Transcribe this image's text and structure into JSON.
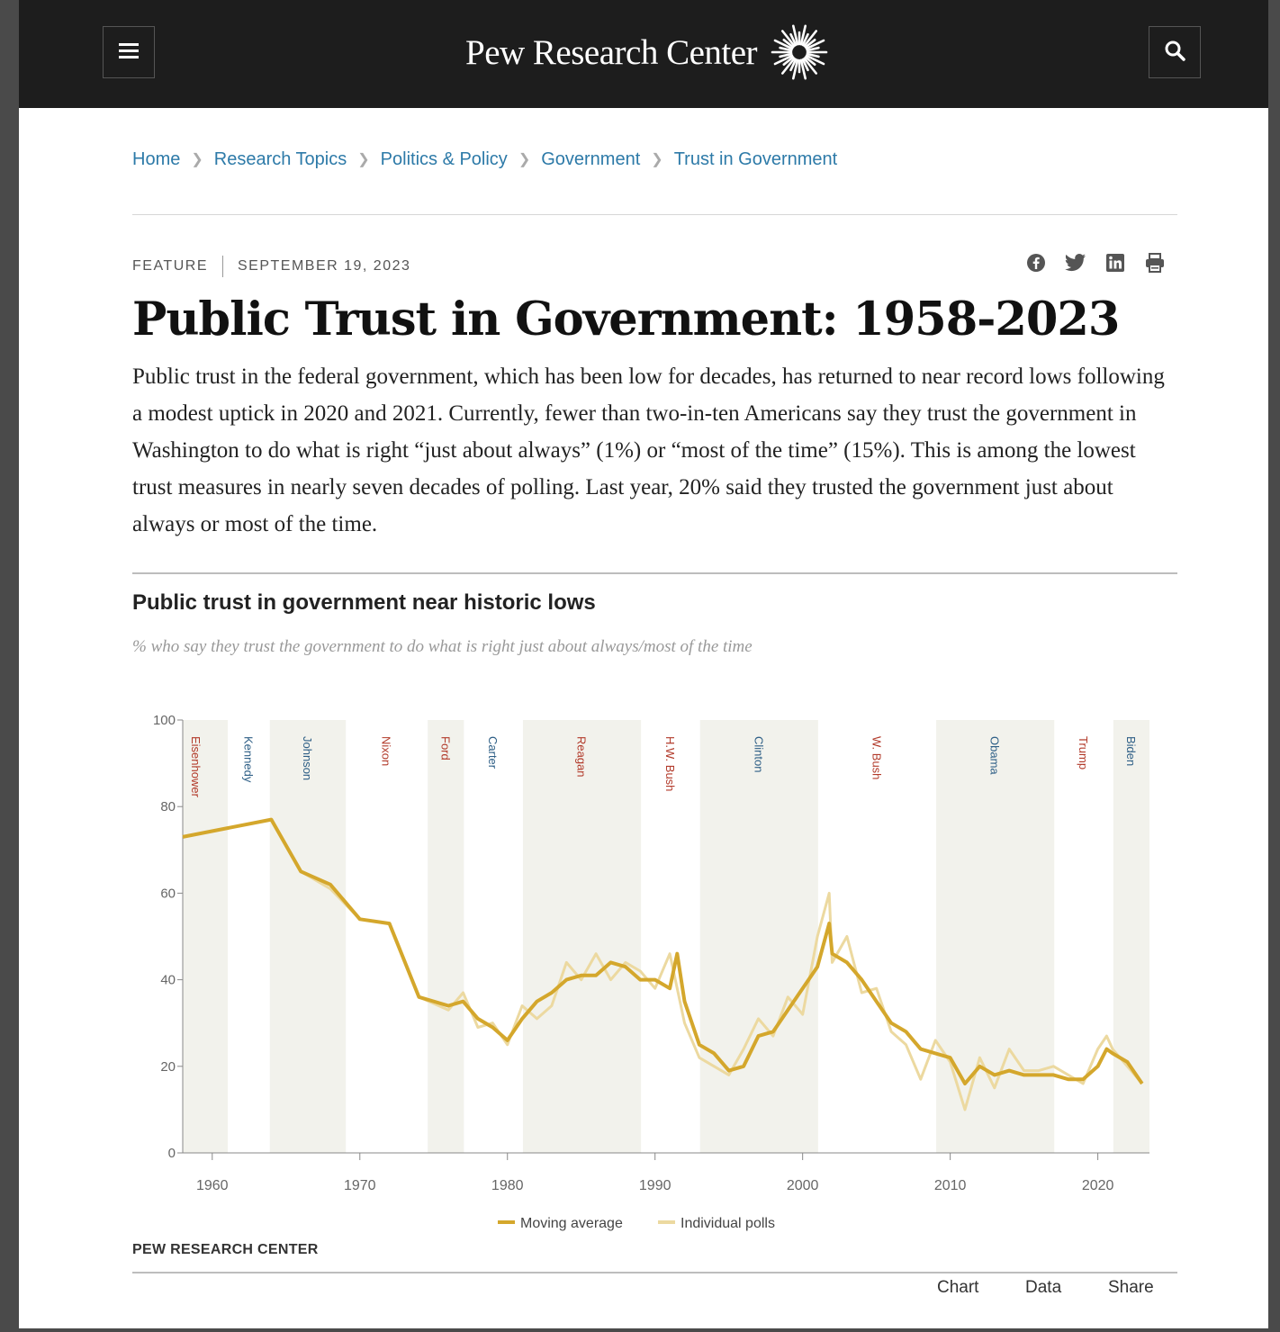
{
  "site": {
    "brand": "Pew Research Center"
  },
  "breadcrumb": [
    "Home",
    "Research Topics",
    "Politics & Policy",
    "Government",
    "Trust in Government"
  ],
  "article": {
    "type": "FEATURE",
    "date": "SEPTEMBER 19, 2023",
    "title": "Public Trust in Government: 1958-2023",
    "intro": "Public trust in the federal government, which has been low for decades, has returned to near record lows following a modest uptick in 2020 and 2021. Currently, fewer than two-in-ten Americans say they trust the government in Washington to do what is right “just about always” (1%) or “most of the time” (15%). This is among the lowest trust measures in nearly seven decades of polling. Last year, 20% said they trusted the government just about always or most of the time."
  },
  "share_icons": [
    "facebook-icon",
    "twitter-icon",
    "linkedin-icon",
    "print-icon"
  ],
  "chart_title": "Public trust in government near historic lows",
  "chart_subtitle": "% who say they trust the government to do what is right just about always/most of the time",
  "chart_source": "PEW RESEARCH CENTER",
  "chart_tabs": [
    "Chart",
    "Data",
    "Share"
  ],
  "colors": {
    "topbar": "#1d1d1d",
    "link": "#2d7aa8",
    "line": "#d4a72c",
    "polls": "#ecd9a0",
    "republican": "#b23a2a",
    "democrat": "#2e5f86",
    "shade": "#f2f2ec"
  },
  "chart_data": {
    "type": "line",
    "title": "Public trust in government near historic lows",
    "subtitle": "% who say they trust the government to do what is right just about always/most of the time",
    "xlim": [
      1958,
      2023.5
    ],
    "ylim": [
      0,
      100
    ],
    "x_ticks": [
      1960,
      1970,
      1980,
      1990,
      2000,
      2010,
      2020
    ],
    "y_ticks": [
      0,
      20,
      40,
      60,
      80,
      100
    ],
    "legend": {
      "placement": "bottom",
      "entries": [
        "Moving average",
        "Individual polls"
      ]
    },
    "presidents": [
      {
        "name": "Eisenhower",
        "start": 1958,
        "end": 1961.05,
        "party": "R"
      },
      {
        "name": "Kennedy",
        "start": 1961.05,
        "end": 1963.9,
        "party": "D"
      },
      {
        "name": "Johnson",
        "start": 1963.9,
        "end": 1969.05,
        "party": "D"
      },
      {
        "name": "Nixon",
        "start": 1969.05,
        "end": 1974.6,
        "party": "R"
      },
      {
        "name": "Ford",
        "start": 1974.6,
        "end": 1977.05,
        "party": "R"
      },
      {
        "name": "Carter",
        "start": 1977.05,
        "end": 1981.05,
        "party": "D"
      },
      {
        "name": "Reagan",
        "start": 1981.05,
        "end": 1989.05,
        "party": "R"
      },
      {
        "name": "H.W. Bush",
        "start": 1989.05,
        "end": 1993.05,
        "party": "R"
      },
      {
        "name": "Clinton",
        "start": 1993.05,
        "end": 2001.05,
        "party": "D"
      },
      {
        "name": "W. Bush",
        "start": 2001.05,
        "end": 2009.05,
        "party": "R"
      },
      {
        "name": "Obama",
        "start": 2009.05,
        "end": 2017.05,
        "party": "D"
      },
      {
        "name": "Trump",
        "start": 2017.05,
        "end": 2021.05,
        "party": "R"
      },
      {
        "name": "Biden",
        "start": 2021.05,
        "end": 2023.5,
        "party": "D"
      }
    ],
    "series": [
      {
        "name": "Moving average",
        "points": [
          [
            1958,
            73
          ],
          [
            1964,
            77
          ],
          [
            1966,
            65
          ],
          [
            1968,
            62
          ],
          [
            1970,
            54
          ],
          [
            1972,
            53
          ],
          [
            1974,
            36
          ],
          [
            1976,
            34
          ],
          [
            1977,
            35
          ],
          [
            1978,
            31
          ],
          [
            1979,
            29
          ],
          [
            1980,
            26
          ],
          [
            1981,
            31
          ],
          [
            1982,
            35
          ],
          [
            1983,
            37
          ],
          [
            1984,
            40
          ],
          [
            1985,
            41
          ],
          [
            1986,
            41
          ],
          [
            1987,
            44
          ],
          [
            1988,
            43
          ],
          [
            1989,
            40
          ],
          [
            1990,
            40
          ],
          [
            1991,
            38
          ],
          [
            1991.5,
            46
          ],
          [
            1992,
            35
          ],
          [
            1993,
            25
          ],
          [
            1994,
            23
          ],
          [
            1995,
            19
          ],
          [
            1996,
            20
          ],
          [
            1997,
            27
          ],
          [
            1998,
            28
          ],
          [
            1999,
            33
          ],
          [
            2000,
            38
          ],
          [
            2001,
            43
          ],
          [
            2001.8,
            53
          ],
          [
            2002,
            46
          ],
          [
            2003,
            44
          ],
          [
            2004,
            40
          ],
          [
            2005,
            35
          ],
          [
            2006,
            30
          ],
          [
            2007,
            28
          ],
          [
            2008,
            24
          ],
          [
            2009,
            23
          ],
          [
            2010,
            22
          ],
          [
            2011,
            16
          ],
          [
            2012,
            20
          ],
          [
            2013,
            18
          ],
          [
            2014,
            19
          ],
          [
            2015,
            18
          ],
          [
            2016,
            18
          ],
          [
            2017,
            18
          ],
          [
            2018,
            17
          ],
          [
            2019,
            17
          ],
          [
            2020,
            20
          ],
          [
            2020.6,
            24
          ],
          [
            2021,
            23
          ],
          [
            2022,
            21
          ],
          [
            2023,
            16
          ]
        ]
      },
      {
        "name": "Individual polls",
        "points": [
          [
            1958,
            73
          ],
          [
            1964,
            77
          ],
          [
            1966,
            65
          ],
          [
            1968,
            61
          ],
          [
            1970,
            54
          ],
          [
            1972,
            53
          ],
          [
            1974,
            36
          ],
          [
            1976,
            33
          ],
          [
            1977,
            37
          ],
          [
            1978,
            29
          ],
          [
            1979,
            30
          ],
          [
            1980,
            25
          ],
          [
            1981,
            34
          ],
          [
            1982,
            31
          ],
          [
            1983,
            34
          ],
          [
            1984,
            44
          ],
          [
            1985,
            40
          ],
          [
            1986,
            46
          ],
          [
            1987,
            40
          ],
          [
            1988,
            44
          ],
          [
            1989,
            42
          ],
          [
            1990,
            38
          ],
          [
            1991,
            46
          ],
          [
            1992,
            30
          ],
          [
            1993,
            22
          ],
          [
            1994,
            20
          ],
          [
            1995,
            18
          ],
          [
            1996,
            24
          ],
          [
            1997,
            31
          ],
          [
            1998,
            27
          ],
          [
            1999,
            36
          ],
          [
            2000,
            32
          ],
          [
            2001,
            50
          ],
          [
            2001.8,
            60
          ],
          [
            2002,
            44
          ],
          [
            2003,
            50
          ],
          [
            2004,
            37
          ],
          [
            2005,
            38
          ],
          [
            2006,
            28
          ],
          [
            2007,
            25
          ],
          [
            2008,
            17
          ],
          [
            2009,
            26
          ],
          [
            2010,
            21
          ],
          [
            2011,
            10
          ],
          [
            2012,
            22
          ],
          [
            2013,
            15
          ],
          [
            2014,
            24
          ],
          [
            2015,
            19
          ],
          [
            2016,
            19
          ],
          [
            2017,
            20
          ],
          [
            2018,
            18
          ],
          [
            2019,
            16
          ],
          [
            2020,
            24
          ],
          [
            2020.6,
            27
          ],
          [
            2021,
            24
          ],
          [
            2022,
            20
          ],
          [
            2023,
            16
          ]
        ]
      }
    ]
  }
}
